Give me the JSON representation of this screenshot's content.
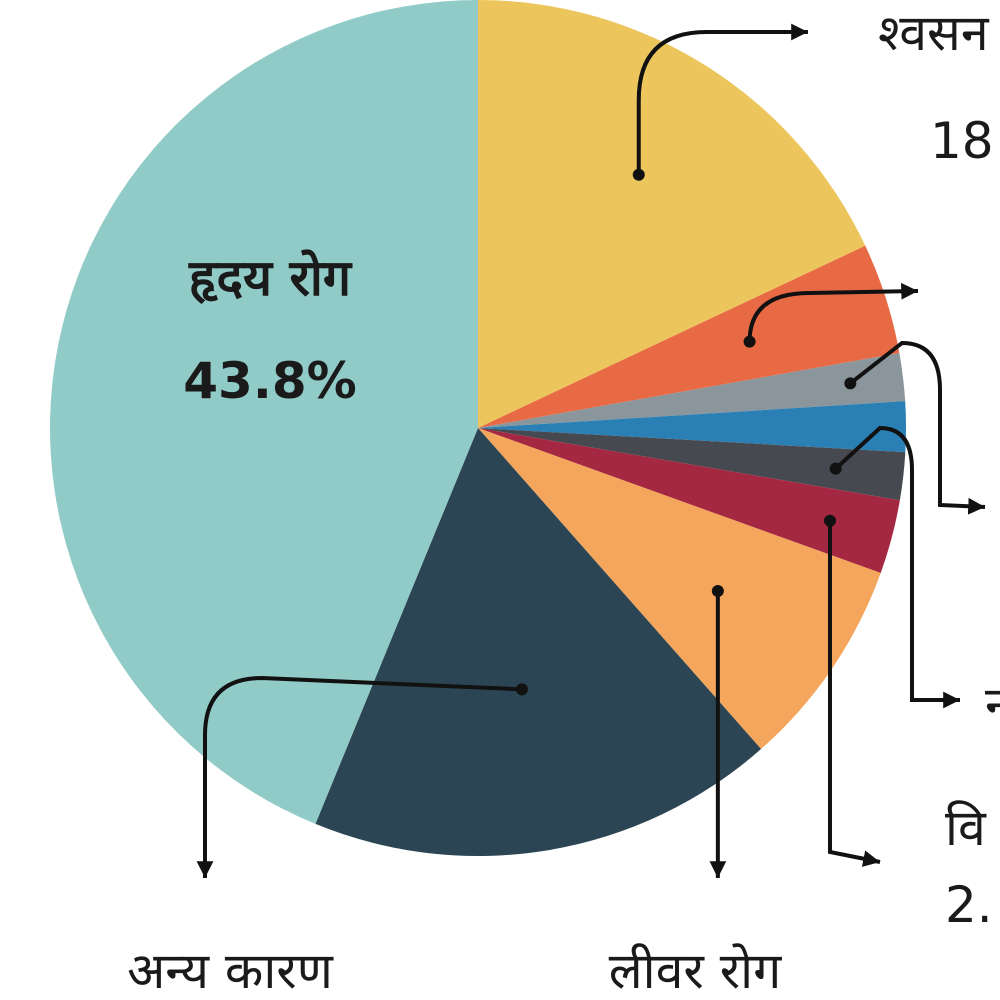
{
  "chart_data": {
    "type": "pie",
    "slices": [
      {
        "label": "श्वसन",
        "value_text": "18",
        "value": 18.0,
        "color": "#ecc65c"
      },
      {
        "label": "",
        "value_text": "",
        "value": 4.2,
        "color": "#e86a45"
      },
      {
        "label": "",
        "value_text": "",
        "value": 1.8,
        "color": "#8a969c"
      },
      {
        "label": "",
        "value_text": "",
        "value": 1.9,
        "color": "#2a7fb4"
      },
      {
        "label": "",
        "value_text": "",
        "value": 1.8,
        "color": "#46494f"
      },
      {
        "label": "वि",
        "value_text": "2.",
        "value": 2.8,
        "color": "#a52842"
      },
      {
        "label": "लीवर रोग",
        "value_text": "",
        "value": 8.0,
        "color": "#f4a65c"
      },
      {
        "label": "अन्य कारण",
        "value_text": "",
        "value": 17.7,
        "color": "#2c4554"
      },
      {
        "label": "हृदय रोग",
        "value_text": "43.8%",
        "value": 43.8,
        "color": "#90cbc7"
      }
    ],
    "partial_label": "न"
  }
}
